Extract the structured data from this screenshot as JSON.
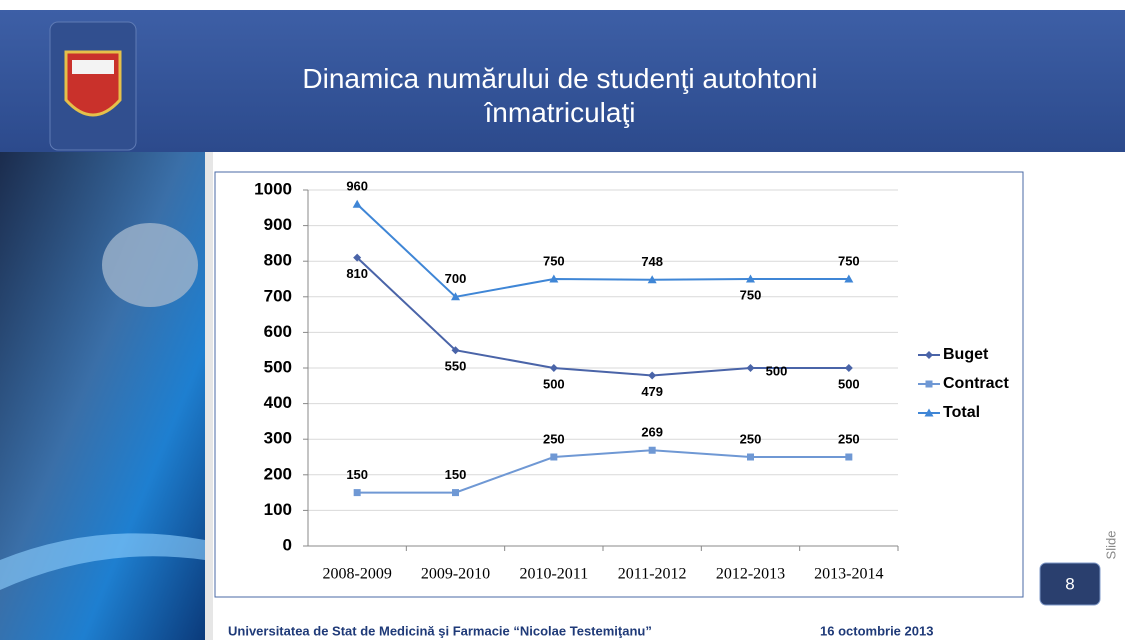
{
  "slide": {
    "title": "Dinamica numărului de studenţi autohtoni înmatriculaţi",
    "footer_left": "Universitatea de Stat de Medicină şi Farmacie “Nicolae Testemiţanu”",
    "footer_right": "16 octombrie 2013",
    "slide_label": "Slide",
    "slide_number": "8"
  },
  "chart_data": {
    "type": "line",
    "categories": [
      "2008-2009",
      "2009-2010",
      "2010-2011",
      "2011-2012",
      "2012-2013",
      "2013-2014"
    ],
    "series": [
      {
        "name": "Buget",
        "color": "#4a64a8",
        "marker": "diamond",
        "values": [
          810,
          550,
          500,
          479,
          500,
          500
        ]
      },
      {
        "name": "Contract",
        "color": "#6f98d4",
        "marker": "square",
        "values": [
          150,
          150,
          250,
          269,
          250,
          250
        ]
      },
      {
        "name": "Total",
        "color": "#3f86d6",
        "marker": "triangle",
        "values": [
          960,
          700,
          750,
          748,
          750,
          750
        ]
      }
    ],
    "ylim": [
      0,
      1000
    ],
    "yticks": [
      0,
      100,
      200,
      300,
      400,
      500,
      600,
      700,
      800,
      900,
      1000
    ],
    "grid": true,
    "legend": "right"
  }
}
